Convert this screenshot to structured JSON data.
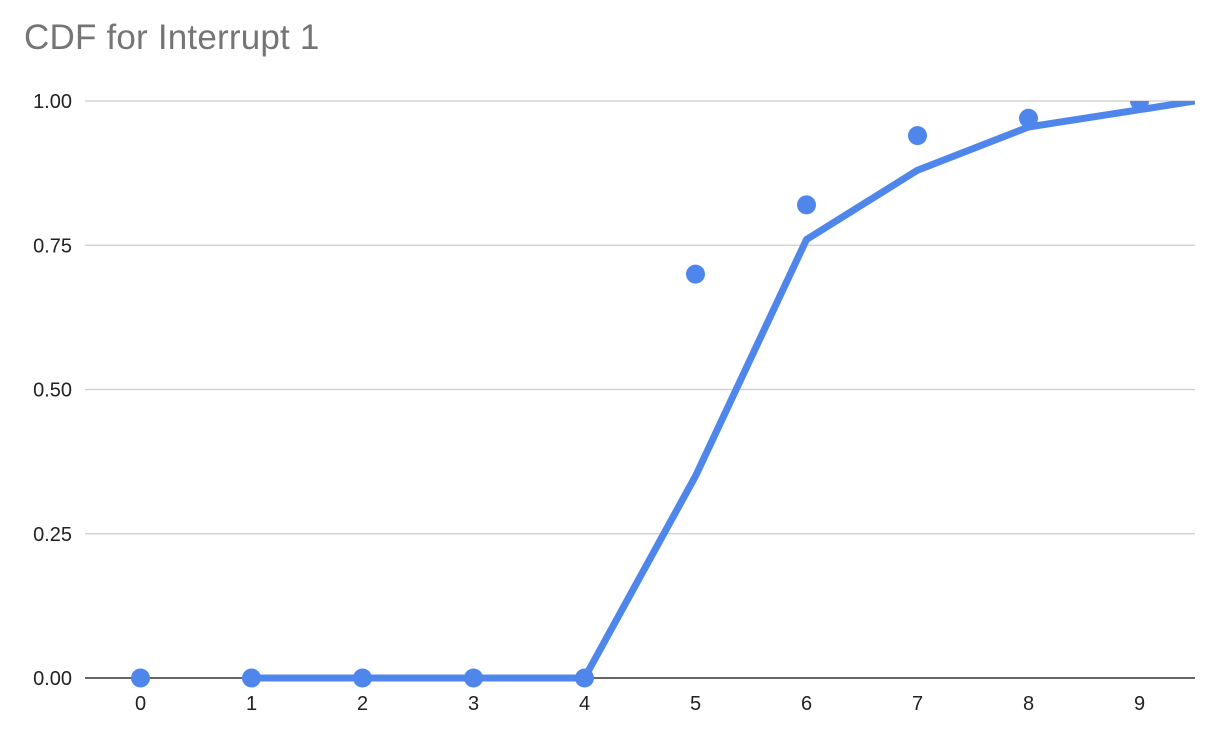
{
  "title": "CDF for Interrupt 1",
  "colors": {
    "series": "#4f86ec",
    "grid": "#cccccc",
    "axis": "#333333",
    "title": "#757575",
    "tick_text": "#222222"
  },
  "chart_data": {
    "type": "line",
    "title": "CDF for Interrupt 1",
    "xlabel": "",
    "ylabel": "",
    "x_ticks": [
      "0",
      "1",
      "2",
      "3",
      "4",
      "5",
      "6",
      "7",
      "8",
      "9"
    ],
    "y_ticks": [
      "0.00",
      "0.25",
      "0.50",
      "0.75",
      "1.00"
    ],
    "xlim": [
      -0.5,
      9.5
    ],
    "ylim": [
      0,
      1
    ],
    "grid": true,
    "legend": "none",
    "series": [
      {
        "type": "scatter",
        "x": [
          0,
          1,
          2,
          3,
          4,
          5,
          6,
          7,
          8,
          9
        ],
        "y": [
          0.0,
          0.0,
          0.0,
          0.0,
          0.0,
          0.7,
          0.82,
          0.94,
          0.97,
          1.0
        ]
      },
      {
        "type": "line",
        "x": [
          1,
          2,
          3,
          4,
          5,
          6,
          7,
          8,
          9,
          9.5
        ],
        "y": [
          0.0,
          0.0,
          0.0,
          0.0,
          0.35,
          0.76,
          0.88,
          0.955,
          0.985,
          1.0
        ]
      }
    ]
  }
}
